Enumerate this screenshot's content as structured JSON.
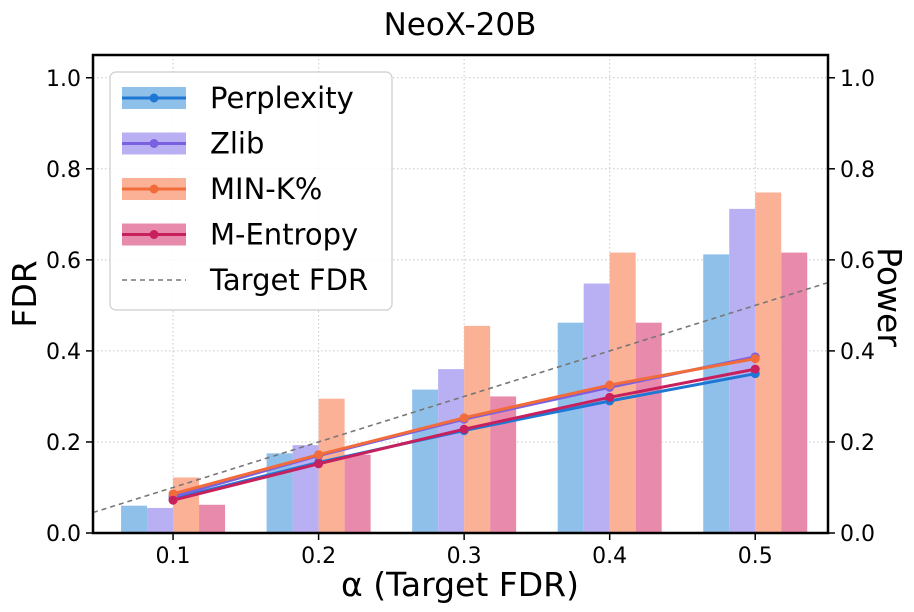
{
  "chart_data": {
    "type": "bar",
    "title": "NeoX-20B",
    "xlabel": "α (Target FDR)",
    "ylabel_left": "FDR",
    "ylabel_right": "Power",
    "categories": [
      "0.1",
      "0.2",
      "0.3",
      "0.4",
      "0.5"
    ],
    "x": [
      0.1,
      0.2,
      0.3,
      0.4,
      0.5
    ],
    "xlim": [
      0.045,
      0.55
    ],
    "ylim": [
      0,
      1.05
    ],
    "yticks": [
      "0.0",
      "0.2",
      "0.4",
      "0.6",
      "0.8",
      "1.0"
    ],
    "ytick_values": [
      0,
      0.2,
      0.4,
      0.6,
      0.8,
      1.0
    ],
    "grid": true,
    "legend_position": "top-left",
    "bars_axis": "Power (right)",
    "lines_axis": "FDR (left)",
    "series": [
      {
        "name": "Perplexity",
        "color": "#1f77d4",
        "bar_color": "#8fc0ea",
        "bar_values": [
          0.06,
          0.175,
          0.315,
          0.462,
          0.612
        ],
        "line_values": [
          0.075,
          0.155,
          0.225,
          0.29,
          0.35
        ]
      },
      {
        "name": "Zlib",
        "color": "#7b61e0",
        "bar_color": "#b9b0f3",
        "bar_values": [
          0.055,
          0.193,
          0.36,
          0.548,
          0.712
        ],
        "line_values": [
          0.08,
          0.17,
          0.25,
          0.32,
          0.387
        ]
      },
      {
        "name": "MIN-K%",
        "color": "#f26b3a",
        "bar_color": "#fbb196",
        "bar_values": [
          0.122,
          0.295,
          0.455,
          0.616,
          0.748
        ],
        "line_values": [
          0.086,
          0.172,
          0.253,
          0.325,
          0.383
        ]
      },
      {
        "name": "M-Entropy",
        "color": "#c7205c",
        "bar_color": "#e88aab",
        "bar_values": [
          0.062,
          0.172,
          0.3,
          0.462,
          0.616
        ],
        "line_values": [
          0.072,
          0.152,
          0.228,
          0.298,
          0.36
        ]
      }
    ],
    "reference_line": {
      "name": "Target FDR",
      "color": "#777777",
      "from": [
        0.045,
        0.045
      ],
      "to": [
        0.55,
        0.55
      ]
    }
  }
}
